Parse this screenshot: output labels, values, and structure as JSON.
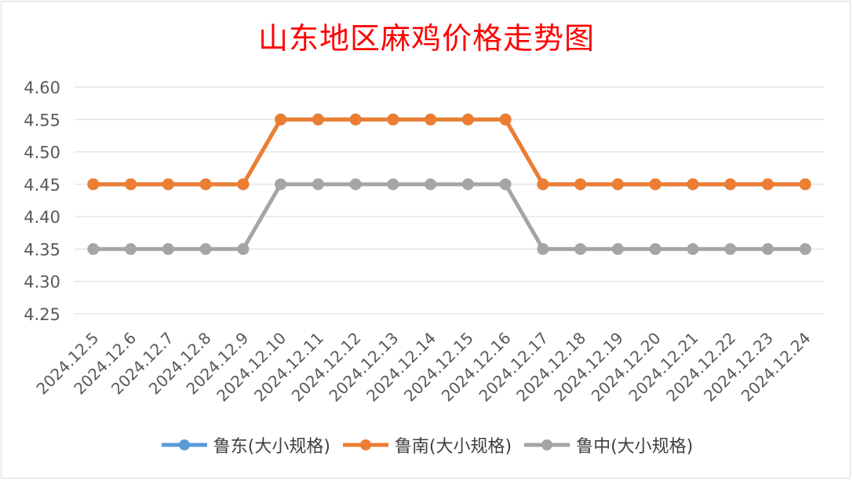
{
  "chart_data": {
    "type": "line",
    "title": "山东地区麻鸡价格走势图",
    "xlabel": "",
    "ylabel": "",
    "categories": [
      "2024.12.5",
      "2024.12.6",
      "2024.12.7",
      "2024.12.8",
      "2024.12.9",
      "2024.12.10",
      "2024.12.11",
      "2024.12.12",
      "2024.12.13",
      "2024.12.14",
      "2024.12.15",
      "2024.12.16",
      "2024.12.17",
      "2024.12.18",
      "2024.12.19",
      "2024.12.20",
      "2024.12.21",
      "2024.12.22",
      "2024.12.23",
      "2024.12.24"
    ],
    "ylim": [
      4.25,
      4.6
    ],
    "yticks": [
      "4.25",
      "4.30",
      "4.35",
      "4.40",
      "4.45",
      "4.50",
      "4.55",
      "4.60"
    ],
    "grid": true,
    "legend_position": "bottom",
    "series": [
      {
        "name": "鲁东(大小规格)",
        "color": "#5b9bd5",
        "values": [
          4.45,
          4.45,
          4.45,
          4.45,
          4.45,
          4.55,
          4.55,
          4.55,
          4.55,
          4.55,
          4.55,
          4.55,
          4.45,
          4.45,
          4.45,
          4.45,
          4.45,
          4.45,
          4.45,
          4.45
        ]
      },
      {
        "name": "鲁南(大小规格)",
        "color": "#ed7d31",
        "values": [
          4.45,
          4.45,
          4.45,
          4.45,
          4.45,
          4.55,
          4.55,
          4.55,
          4.55,
          4.55,
          4.55,
          4.55,
          4.45,
          4.45,
          4.45,
          4.45,
          4.45,
          4.45,
          4.45,
          4.45
        ]
      },
      {
        "name": "鲁中(大小规格)",
        "color": "#a5a5a5",
        "values": [
          4.35,
          4.35,
          4.35,
          4.35,
          4.35,
          4.45,
          4.45,
          4.45,
          4.45,
          4.45,
          4.45,
          4.45,
          4.35,
          4.35,
          4.35,
          4.35,
          4.35,
          4.35,
          4.35,
          4.35
        ]
      }
    ]
  }
}
